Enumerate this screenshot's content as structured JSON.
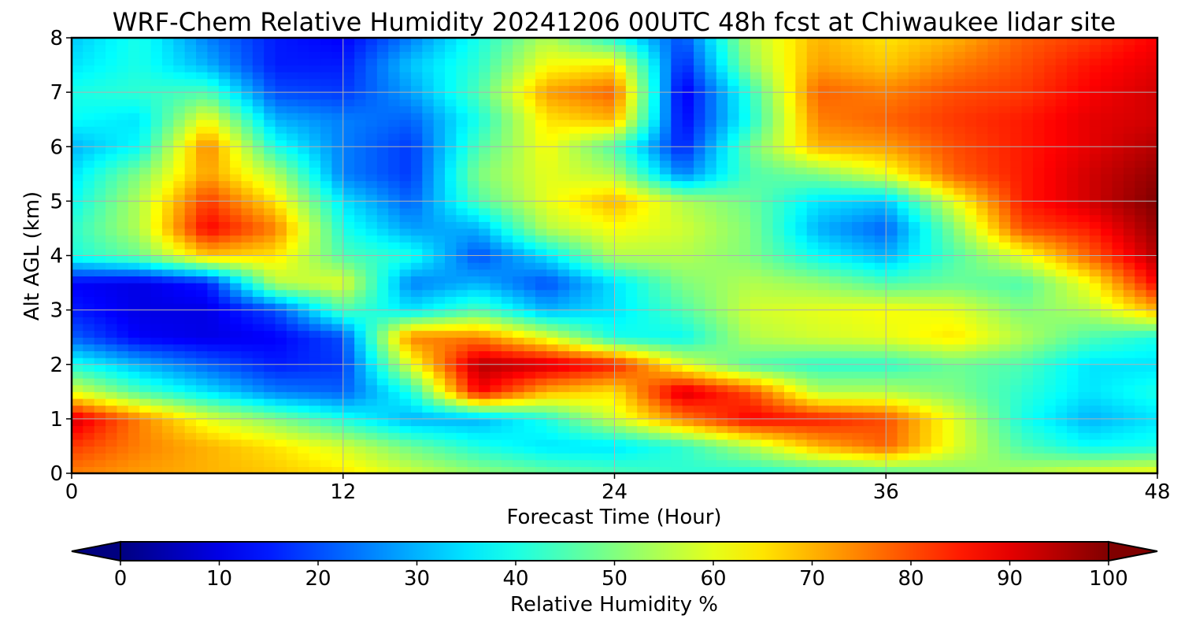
{
  "chart_data": [
    {
      "type": "heatmap",
      "title": "WRF-Chem Relative Humidity 20241206 00UTC 48h fcst at Chiwaukee lidar site",
      "xlabel": "Forecast Time (Hour)",
      "ylabel": "Alt AGL (km)",
      "xlim": [
        0,
        48
      ],
      "ylim": [
        0,
        8
      ],
      "xticks": [
        "0",
        "12",
        "24",
        "36",
        "48"
      ],
      "yticks": [
        "0",
        "1",
        "2",
        "3",
        "4",
        "5",
        "6",
        "7",
        "8"
      ],
      "grid": true,
      "colormap": "jet",
      "x": [
        0,
        3,
        6,
        9,
        12,
        15,
        18,
        21,
        24,
        27,
        30,
        33,
        36,
        39,
        42,
        45,
        48
      ],
      "y": [
        0,
        0.5,
        1,
        1.5,
        2,
        2.5,
        3,
        3.5,
        4,
        4.5,
        5,
        5.5,
        6,
        6.5,
        7,
        7.5,
        8
      ],
      "z": [
        [
          75,
          72,
          70,
          68,
          65,
          58,
          52,
          48,
          45,
          42,
          40,
          42,
          45,
          50,
          55,
          60,
          62
        ],
        [
          82,
          75,
          70,
          65,
          58,
          48,
          40,
          35,
          35,
          42,
          55,
          70,
          78,
          60,
          45,
          38,
          40
        ],
        [
          92,
          75,
          60,
          50,
          40,
          30,
          30,
          40,
          58,
          75,
          88,
          85,
          80,
          60,
          40,
          30,
          35
        ],
        [
          60,
          45,
          35,
          25,
          22,
          40,
          88,
          70,
          65,
          92,
          80,
          55,
          55,
          50,
          42,
          35,
          40
        ],
        [
          40,
          30,
          22,
          15,
          18,
          60,
          95,
          92,
          85,
          60,
          45,
          42,
          42,
          48,
          45,
          35,
          35
        ],
        [
          22,
          12,
          10,
          12,
          20,
          75,
          75,
          60,
          40,
          38,
          55,
          58,
          60,
          65,
          55,
          45,
          40
        ],
        [
          15,
          10,
          10,
          20,
          45,
          35,
          45,
          30,
          35,
          45,
          58,
          60,
          62,
          60,
          50,
          55,
          70
        ],
        [
          12,
          10,
          15,
          55,
          60,
          25,
          30,
          20,
          35,
          50,
          55,
          52,
          45,
          48,
          45,
          62,
          88
        ],
        [
          40,
          48,
          68,
          65,
          45,
          40,
          20,
          35,
          55,
          55,
          50,
          38,
          30,
          45,
          60,
          78,
          95
        ],
        [
          42,
          55,
          88,
          75,
          40,
          28,
          30,
          55,
          62,
          58,
          50,
          30,
          22,
          50,
          80,
          85,
          98
        ],
        [
          38,
          55,
          82,
          65,
          35,
          22,
          45,
          60,
          70,
          55,
          48,
          35,
          32,
          60,
          85,
          92,
          100
        ],
        [
          35,
          50,
          72,
          55,
          25,
          18,
          50,
          60,
          55,
          25,
          45,
          50,
          60,
          78,
          85,
          92,
          98
        ],
        [
          30,
          38,
          75,
          40,
          25,
          18,
          45,
          62,
          45,
          15,
          48,
          70,
          72,
          80,
          85,
          90,
          95
        ],
        [
          38,
          35,
          62,
          30,
          25,
          22,
          40,
          65,
          70,
          12,
          40,
          75,
          78,
          82,
          85,
          90,
          92
        ],
        [
          40,
          42,
          45,
          20,
          18,
          28,
          45,
          72,
          78,
          10,
          42,
          78,
          75,
          80,
          82,
          88,
          92
        ],
        [
          35,
          40,
          30,
          15,
          15,
          32,
          42,
          62,
          65,
          15,
          52,
          72,
          68,
          75,
          80,
          86,
          90
        ],
        [
          32,
          40,
          25,
          15,
          12,
          25,
          40,
          55,
          40,
          20,
          55,
          70,
          65,
          70,
          78,
          82,
          88
        ]
      ],
      "colorbar": {
        "label": "Relative Humidity %",
        "min": 0,
        "max": 100,
        "ticks": [
          "0",
          "10",
          "20",
          "30",
          "40",
          "50",
          "60",
          "70",
          "80",
          "90",
          "100"
        ],
        "extend": "both"
      }
    }
  ]
}
